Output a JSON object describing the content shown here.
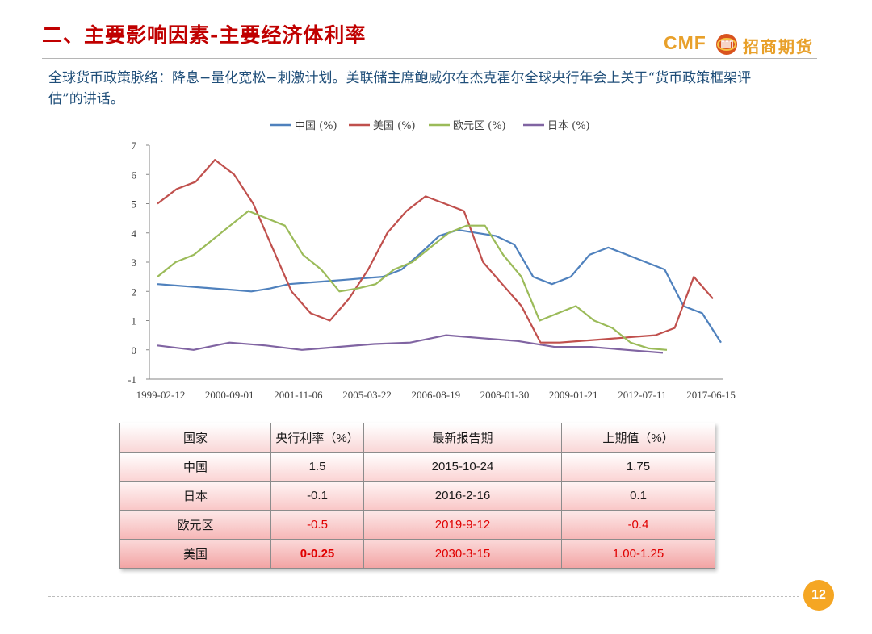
{
  "header": {
    "title": "二、主要影响因素-主要经济体利率",
    "logo_cmf": "CMF",
    "logo_cn": "招商期货"
  },
  "intro": "全球货币政策脉络：降息−量化宽松−刺激计划。美联储主席鲍威尔在杰克霍尔全球央行年会上关于“货币政策框架评估”的讲话。",
  "chart_data": {
    "type": "line",
    "ylim": [
      -1,
      7
    ],
    "yticks": [
      "7",
      "6",
      "5",
      "4",
      "3",
      "2",
      "1",
      "0",
      "-1"
    ],
    "xticks": [
      "1999-02-12",
      "2000-09-01",
      "2001-11-06",
      "2005-03-22",
      "2006-08-19",
      "2008-01-30",
      "2009-01-21",
      "2012-07-11",
      "2017-06-15"
    ],
    "legend_position": "top",
    "grid": false,
    "series": [
      {
        "name": "中国 (%)",
        "color": "#4f81bd",
        "values": [
          2.25,
          2.2,
          2.15,
          2.1,
          2.05,
          2.0,
          2.1,
          2.25,
          2.3,
          2.35,
          2.4,
          2.45,
          2.5,
          2.75,
          3.3,
          3.9,
          4.1,
          4.0,
          3.9,
          3.6,
          2.5,
          2.25,
          2.5,
          3.25,
          3.5,
          3.25,
          3.0,
          2.75,
          1.5,
          1.25,
          0.25
        ]
      },
      {
        "name": "美国 (%)",
        "color": "#c0504d",
        "values": [
          5.0,
          5.5,
          5.75,
          6.5,
          6.0,
          5.0,
          3.5,
          2.0,
          1.25,
          1.0,
          1.75,
          2.75,
          4.0,
          4.75,
          5.25,
          5.0,
          4.75,
          3.0,
          2.25,
          1.5,
          0.25,
          0.25,
          0.3,
          0.35,
          0.4,
          0.45,
          0.5,
          0.75,
          2.5,
          1.75
        ]
      },
      {
        "name": "欧元区 (%)",
        "color": "#9bbb59",
        "values": [
          2.5,
          3.0,
          3.25,
          3.75,
          4.25,
          4.75,
          4.5,
          4.25,
          3.25,
          2.75,
          2.0,
          2.1,
          2.25,
          2.75,
          3.0,
          3.5,
          4.0,
          4.25,
          4.25,
          3.25,
          2.5,
          1.0,
          1.25,
          1.5,
          1.0,
          0.75,
          0.25,
          0.05,
          0.0
        ]
      },
      {
        "name": "日本 (%)",
        "color": "#8064a2",
        "values": [
          0.15,
          0.0,
          0.25,
          0.15,
          0.0,
          0.1,
          0.2,
          0.25,
          0.5,
          0.4,
          0.3,
          0.1,
          0.1,
          0.0,
          -0.1
        ]
      }
    ]
  },
  "table": {
    "headers": [
      "国家",
      "央行利率（%）",
      "最新报告期",
      "上期值（%）"
    ],
    "rows": [
      [
        "中国",
        "1.5",
        "2015-10-24",
        "1.75"
      ],
      [
        "日本",
        "-0.1",
        "2016-2-16",
        "0.1"
      ],
      [
        "欧元区",
        "-0.5",
        "2019-9-12",
        "-0.4"
      ],
      [
        "美国",
        "0-0.25",
        "2030-3-15",
        "1.00-1.25"
      ]
    ]
  },
  "page_number": "12"
}
